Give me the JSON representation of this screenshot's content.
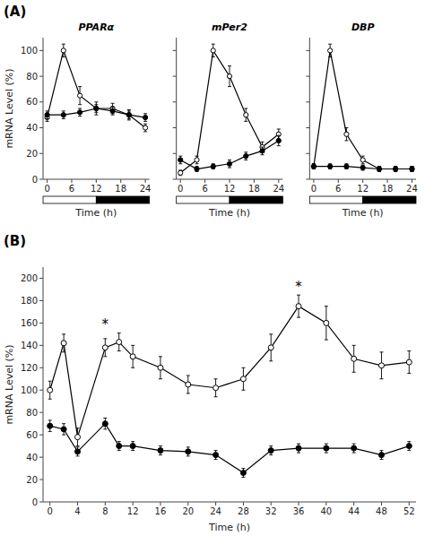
{
  "chart_data": [
    {
      "type": "line",
      "panel_label": "(A)",
      "title": "PPARα",
      "xlabel": "Time (h)",
      "ylabel": "mRNA Level (%)",
      "x": [
        0,
        4,
        8,
        12,
        16,
        20,
        24
      ],
      "series": [
        {
          "color": "black",
          "marker": "open-circle",
          "line_style": "solid",
          "values": [
            48,
            100,
            65,
            55,
            55,
            50,
            40
          ],
          "errors": [
            3,
            5,
            7,
            5,
            4,
            4,
            3
          ]
        },
        {
          "color": "black",
          "marker": "filled-circle",
          "line_style": "solid",
          "values": [
            50,
            50,
            52,
            55,
            53,
            50,
            48
          ],
          "errors": [
            3,
            3,
            3,
            3,
            3,
            3,
            3
          ]
        }
      ],
      "xlim": [
        -1,
        25
      ],
      "xticks": [
        0,
        6,
        12,
        18,
        24
      ],
      "ylim": [
        0,
        110
      ],
      "yticks": [
        0,
        20,
        40,
        60,
        80,
        100
      ],
      "grid": false
    },
    {
      "type": "line",
      "title": "mPer2",
      "xlabel": "Time (h)",
      "x": [
        0,
        4,
        8,
        12,
        16,
        20,
        24
      ],
      "series": [
        {
          "color": "black",
          "marker": "open-circle",
          "line_style": "solid",
          "values": [
            5,
            15,
            100,
            80,
            50,
            25,
            35
          ],
          "errors": [
            2,
            3,
            5,
            8,
            5,
            4,
            4
          ]
        },
        {
          "color": "black",
          "marker": "filled-circle",
          "line_style": "solid",
          "values": [
            15,
            8,
            10,
            12,
            18,
            22,
            30
          ],
          "errors": [
            3,
            2,
            2,
            3,
            3,
            3,
            4
          ]
        }
      ],
      "xlim": [
        -1,
        25
      ],
      "xticks": [
        0,
        6,
        12,
        18,
        24
      ],
      "ylim": [
        0,
        110
      ],
      "yticks": [
        0,
        20,
        40,
        60,
        80,
        100
      ],
      "grid": false,
      "tick_labels": "x"
    },
    {
      "type": "line",
      "title": "DBP",
      "xlabel": "Time (h)",
      "x": [
        0,
        4,
        8,
        12,
        16,
        20,
        24
      ],
      "series": [
        {
          "color": "black",
          "marker": "open-circle",
          "line_style": "solid",
          "values": [
            10,
            100,
            35,
            15,
            8,
            8,
            8
          ],
          "errors": [
            2,
            5,
            5,
            3,
            2,
            2,
            2
          ]
        },
        {
          "color": "black",
          "marker": "filled-circle",
          "line_style": "solid",
          "values": [
            10,
            10,
            10,
            9,
            8,
            8,
            8
          ],
          "errors": [
            2,
            2,
            2,
            2,
            2,
            2,
            2
          ]
        }
      ],
      "xlim": [
        -1,
        25
      ],
      "xticks": [
        0,
        6,
        12,
        18,
        24
      ],
      "ylim": [
        0,
        110
      ],
      "yticks": [
        0,
        20,
        40,
        60,
        80,
        100
      ],
      "grid": false,
      "tick_labels": "x"
    },
    {
      "type": "line",
      "panel_label": "(B)",
      "xlabel": "Time (h)",
      "ylabel": "mRNA Level (%)",
      "x": [
        0,
        2,
        4,
        8,
        10,
        12,
        16,
        20,
        24,
        28,
        32,
        36,
        40,
        44,
        48,
        52
      ],
      "series": [
        {
          "color": "black",
          "marker": "open-circle",
          "line_style": "solid",
          "values": [
            100,
            142,
            58,
            138,
            143,
            130,
            120,
            105,
            102,
            110,
            138,
            175,
            160,
            128,
            122,
            125
          ],
          "errors": [
            8,
            8,
            8,
            8,
            8,
            10,
            10,
            8,
            8,
            10,
            12,
            10,
            15,
            12,
            12,
            10
          ]
        },
        {
          "color": "black",
          "marker": "filled-circle",
          "line_style": "solid",
          "values": [
            68,
            65,
            45,
            70,
            50,
            50,
            46,
            45,
            42,
            26,
            46,
            48,
            48,
            48,
            42,
            50
          ],
          "errors": [
            5,
            5,
            4,
            5,
            4,
            4,
            4,
            4,
            4,
            4,
            4,
            4,
            4,
            4,
            4,
            4
          ]
        }
      ],
      "annotations": [
        {
          "x": 8,
          "y": 155,
          "text": "*"
        },
        {
          "x": 36,
          "y": 188,
          "text": "*"
        }
      ],
      "xlim": [
        -1,
        53
      ],
      "xticks": [
        0,
        4,
        8,
        12,
        16,
        20,
        24,
        28,
        32,
        36,
        40,
        44,
        48,
        52
      ],
      "ylim": [
        0,
        210
      ],
      "yticks": [
        0,
        20,
        40,
        60,
        80,
        100,
        120,
        140,
        160,
        180,
        200
      ],
      "grid": false
    }
  ]
}
